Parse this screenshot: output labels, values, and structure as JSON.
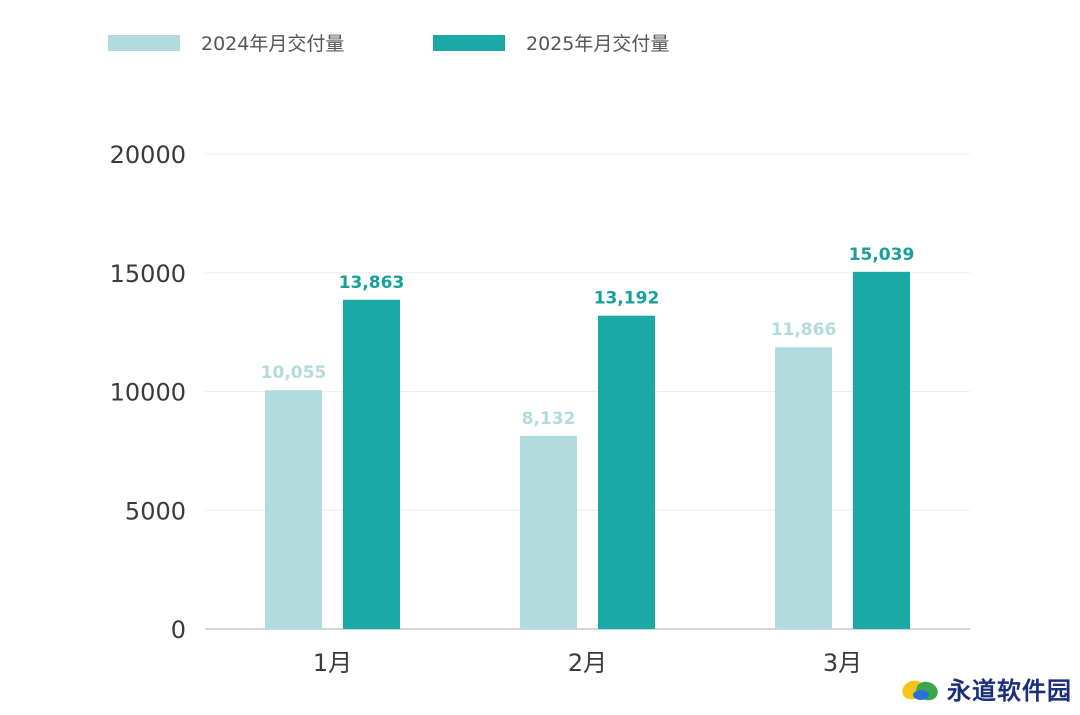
{
  "colors": {
    "series_2024": "#b2dbdd",
    "series_2025": "#1aa9a5",
    "label_2024": "#b2dbdd",
    "label_2025": "#169f9b",
    "grid": "#eeeeee",
    "axis": "#c8c8c8"
  },
  "watermark": {
    "text": "永道软件园",
    "icon": "leaf-logo-icon"
  },
  "chart_data": {
    "type": "bar",
    "categories": [
      "1月",
      "2月",
      "3月"
    ],
    "series": [
      {
        "name": "2024年月交付量",
        "values": [
          10055,
          8132,
          11866
        ],
        "labels": [
          "10,055",
          "8,132",
          "11,866"
        ]
      },
      {
        "name": "2025年月交付量",
        "values": [
          13863,
          13192,
          15039
        ],
        "labels": [
          "13,863",
          "13,192",
          "15,039"
        ]
      }
    ],
    "yticks": [
      "0",
      "5000",
      "10000",
      "15000",
      "20000"
    ],
    "ylim": [
      0,
      20000
    ],
    "legend_position": "top-left",
    "grid": true,
    "title": "",
    "xlabel": "",
    "ylabel": ""
  }
}
